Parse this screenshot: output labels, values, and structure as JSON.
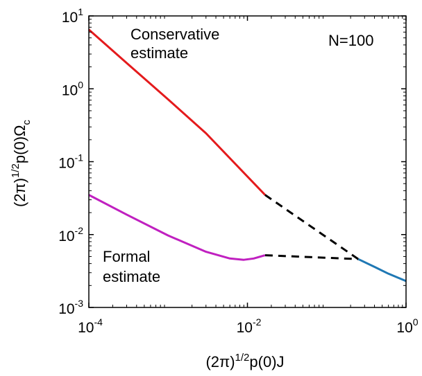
{
  "chart_data": {
    "type": "line",
    "xlabel": "(2π)^{1/2}p(0)J",
    "ylabel": "(2π)^{1/2}p(0)Ω_c",
    "x_scale": "log",
    "y_scale": "log",
    "xlim": [
      0.0001,
      1
    ],
    "ylim": [
      0.001,
      10
    ],
    "grid": false,
    "x_ticks": [
      {
        "base": "10",
        "exp": "-4"
      },
      {
        "base": "10",
        "exp": "-2"
      },
      {
        "base": "10",
        "exp": "0"
      }
    ],
    "y_ticks": [
      {
        "base": "10",
        "exp": "-3"
      },
      {
        "base": "10",
        "exp": "-2"
      },
      {
        "base": "10",
        "exp": "-1"
      },
      {
        "base": "10",
        "exp": "0"
      },
      {
        "base": "10",
        "exp": "1"
      }
    ],
    "annotations": {
      "top_right": "N=100",
      "conservative": [
        "Conservative",
        "estimate"
      ],
      "formal": [
        "Formal",
        "estimate"
      ]
    },
    "series": [
      {
        "color": "#e41a1c",
        "style": "solid",
        "x": [
          0.0001,
          0.0003,
          0.001,
          0.003,
          0.0167
        ],
        "y": [
          6.5,
          2.26,
          0.715,
          0.245,
          0.035
        ]
      },
      {
        "color": "#000000",
        "style": "dashed",
        "x": [
          0.0167,
          0.25
        ],
        "y": [
          0.035,
          0.0046
        ]
      },
      {
        "color": "#c020c0",
        "style": "solid",
        "x": [
          0.0001,
          0.0003,
          0.001,
          0.003,
          0.006,
          0.009,
          0.012,
          0.0167
        ],
        "y": [
          0.035,
          0.0188,
          0.0097,
          0.0058,
          0.0047,
          0.0045,
          0.0047,
          0.0052
        ]
      },
      {
        "color": "#000000",
        "style": "dashed",
        "x": [
          0.0167,
          0.25
        ],
        "y": [
          0.0052,
          0.0046
        ]
      },
      {
        "color": "#1f78b4",
        "style": "solid",
        "x": [
          0.25,
          0.4,
          0.6,
          1.0
        ],
        "y": [
          0.0046,
          0.0036,
          0.0029,
          0.0023
        ]
      }
    ]
  }
}
